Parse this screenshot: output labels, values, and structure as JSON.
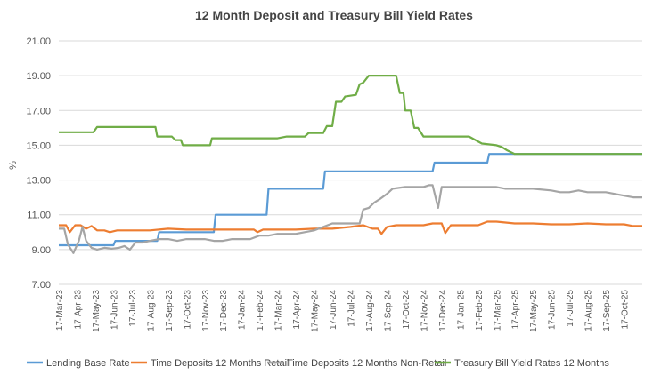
{
  "chart_data": {
    "type": "line",
    "title": "12 Month Deposit and Treasury Bill Yield Rates",
    "xlabel": "",
    "ylabel": "%",
    "ylim": [
      7.0,
      21.0
    ],
    "yticks": [
      "7.00",
      "9.00",
      "11.00",
      "13.00",
      "15.00",
      "17.00",
      "19.00",
      "21.00"
    ],
    "ytick_values": [
      7,
      9,
      11,
      13,
      15,
      17,
      19,
      21
    ],
    "x_month_range": [
      0,
      32
    ],
    "x_ticks": [
      "17-Mar-23",
      "17-Apr-23",
      "17-May-23",
      "17-Jun-23",
      "17-Jul-23",
      "17-Aug-23",
      "17-Sep-23",
      "17-Oct-23",
      "17-Nov-23",
      "17-Dec-23",
      "17-Jan-24",
      "17-Feb-24",
      "17-Mar-24",
      "17-Apr-24",
      "17-May-24",
      "17-Jun-24",
      "17-Jul-24",
      "17-Aug-24",
      "17-Sep-24",
      "17-Oct-24",
      "17-Nov-24",
      "17-Dec-24",
      "17-Jan-25",
      "17-Feb-25",
      "17-Mar-25",
      "17-Apr-25",
      "17-May-25",
      "17-Jun-25",
      "17-Jul-25",
      "17-Aug-25",
      "17-Sep-25",
      "17-Oct-25"
    ],
    "gridlines": true,
    "legend_position": "bottom",
    "series": [
      {
        "name": "Lending Base Rate",
        "color": "#5B9BD5",
        "points": [
          [
            0,
            9.25
          ],
          [
            3,
            9.25
          ],
          [
            3.1,
            9.5
          ],
          [
            5.4,
            9.5
          ],
          [
            5.5,
            10.0
          ],
          [
            8.5,
            10.0
          ],
          [
            8.6,
            11.0
          ],
          [
            11.4,
            11.0
          ],
          [
            11.5,
            12.5
          ],
          [
            14.5,
            12.5
          ],
          [
            14.6,
            13.5
          ],
          [
            20.5,
            13.5
          ],
          [
            20.6,
            14.0
          ],
          [
            23.5,
            14.0
          ],
          [
            23.6,
            14.5
          ],
          [
            32,
            14.5
          ]
        ]
      },
      {
        "name": "Time Deposits 12 Months Retail",
        "color": "#ED7D31",
        "points": [
          [
            0,
            10.4
          ],
          [
            0.4,
            10.4
          ],
          [
            0.6,
            10.0
          ],
          [
            0.9,
            10.4
          ],
          [
            1.2,
            10.4
          ],
          [
            1.5,
            10.2
          ],
          [
            1.8,
            10.35
          ],
          [
            2.1,
            10.1
          ],
          [
            2.5,
            10.1
          ],
          [
            2.8,
            10.0
          ],
          [
            3.2,
            10.1
          ],
          [
            4,
            10.1
          ],
          [
            5,
            10.1
          ],
          [
            6,
            10.2
          ],
          [
            7,
            10.15
          ],
          [
            8,
            10.15
          ],
          [
            9,
            10.15
          ],
          [
            10,
            10.15
          ],
          [
            10.7,
            10.15
          ],
          [
            10.9,
            10.0
          ],
          [
            11.2,
            10.15
          ],
          [
            12,
            10.15
          ],
          [
            13,
            10.15
          ],
          [
            14,
            10.2
          ],
          [
            15,
            10.2
          ],
          [
            16,
            10.3
          ],
          [
            16.7,
            10.4
          ],
          [
            17.2,
            10.2
          ],
          [
            17.5,
            10.2
          ],
          [
            17.7,
            9.9
          ],
          [
            18,
            10.3
          ],
          [
            18.5,
            10.4
          ],
          [
            19,
            10.4
          ],
          [
            20,
            10.4
          ],
          [
            20.5,
            10.5
          ],
          [
            21,
            10.5
          ],
          [
            21.2,
            9.95
          ],
          [
            21.5,
            10.4
          ],
          [
            22,
            10.4
          ],
          [
            23,
            10.4
          ],
          [
            23.5,
            10.6
          ],
          [
            24,
            10.6
          ],
          [
            25,
            10.5
          ],
          [
            26,
            10.5
          ],
          [
            27,
            10.45
          ],
          [
            28,
            10.45
          ],
          [
            29,
            10.5
          ],
          [
            30,
            10.45
          ],
          [
            31,
            10.45
          ],
          [
            31.5,
            10.35
          ],
          [
            32,
            10.35
          ]
        ]
      },
      {
        "name": "Time Deposits 12 Months Non-Retail",
        "color": "#A5A5A5",
        "points": [
          [
            0,
            10.2
          ],
          [
            0.3,
            10.2
          ],
          [
            0.5,
            9.3
          ],
          [
            0.8,
            8.8
          ],
          [
            1.1,
            9.5
          ],
          [
            1.3,
            10.3
          ],
          [
            1.5,
            9.5
          ],
          [
            1.8,
            9.1
          ],
          [
            2.1,
            9.0
          ],
          [
            2.5,
            9.1
          ],
          [
            2.9,
            9.05
          ],
          [
            3.3,
            9.1
          ],
          [
            3.6,
            9.2
          ],
          [
            3.9,
            9.0
          ],
          [
            4.2,
            9.4
          ],
          [
            4.6,
            9.4
          ],
          [
            5,
            9.5
          ],
          [
            5.5,
            9.6
          ],
          [
            6,
            9.6
          ],
          [
            6.5,
            9.5
          ],
          [
            7,
            9.6
          ],
          [
            8,
            9.6
          ],
          [
            8.5,
            9.5
          ],
          [
            9,
            9.5
          ],
          [
            9.5,
            9.6
          ],
          [
            10,
            9.6
          ],
          [
            10.5,
            9.6
          ],
          [
            11,
            9.8
          ],
          [
            11.5,
            9.8
          ],
          [
            12,
            9.9
          ],
          [
            13,
            9.9
          ],
          [
            14,
            10.1
          ],
          [
            15,
            10.5
          ],
          [
            16,
            10.5
          ],
          [
            16.5,
            10.5
          ],
          [
            16.7,
            11.3
          ],
          [
            17,
            11.4
          ],
          [
            17.3,
            11.7
          ],
          [
            17.6,
            11.9
          ],
          [
            18,
            12.2
          ],
          [
            18.3,
            12.5
          ],
          [
            19,
            12.6
          ],
          [
            19.5,
            12.6
          ],
          [
            20,
            12.6
          ],
          [
            20.3,
            12.7
          ],
          [
            20.5,
            12.7
          ],
          [
            20.8,
            11.4
          ],
          [
            21,
            12.6
          ],
          [
            22,
            12.6
          ],
          [
            23,
            12.6
          ],
          [
            24,
            12.6
          ],
          [
            24.5,
            12.5
          ],
          [
            25,
            12.5
          ],
          [
            26,
            12.5
          ],
          [
            27,
            12.4
          ],
          [
            27.5,
            12.3
          ],
          [
            28,
            12.3
          ],
          [
            28.5,
            12.4
          ],
          [
            29,
            12.3
          ],
          [
            30,
            12.3
          ],
          [
            31,
            12.1
          ],
          [
            31.5,
            12.0
          ],
          [
            32,
            12.0
          ]
        ]
      },
      {
        "name": "Treasury Bill Yield Rates 12 Months",
        "color": "#70AD47",
        "points": [
          [
            0,
            15.75
          ],
          [
            1.9,
            15.75
          ],
          [
            2.1,
            16.05
          ],
          [
            5.3,
            16.05
          ],
          [
            5.4,
            15.5
          ],
          [
            6.2,
            15.5
          ],
          [
            6.4,
            15.3
          ],
          [
            6.7,
            15.3
          ],
          [
            6.8,
            15.0
          ],
          [
            8.3,
            15.0
          ],
          [
            8.4,
            15.4
          ],
          [
            12,
            15.4
          ],
          [
            12.5,
            15.5
          ],
          [
            13.5,
            15.5
          ],
          [
            13.7,
            15.7
          ],
          [
            14.5,
            15.7
          ],
          [
            14.7,
            16.1
          ],
          [
            15,
            16.1
          ],
          [
            15.2,
            17.5
          ],
          [
            15.5,
            17.5
          ],
          [
            15.7,
            17.8
          ],
          [
            16.3,
            17.9
          ],
          [
            16.5,
            18.5
          ],
          [
            16.7,
            18.6
          ],
          [
            17,
            19.0
          ],
          [
            18.5,
            19.0
          ],
          [
            18.7,
            18.0
          ],
          [
            18.9,
            18.0
          ],
          [
            19,
            17.0
          ],
          [
            19.3,
            17.0
          ],
          [
            19.5,
            16.0
          ],
          [
            19.7,
            16.0
          ],
          [
            20,
            15.5
          ],
          [
            22.5,
            15.5
          ],
          [
            23.2,
            15.1
          ],
          [
            24,
            15.0
          ],
          [
            24.3,
            14.9
          ],
          [
            24.6,
            14.7
          ],
          [
            25,
            14.5
          ],
          [
            32,
            14.5
          ]
        ]
      }
    ]
  }
}
